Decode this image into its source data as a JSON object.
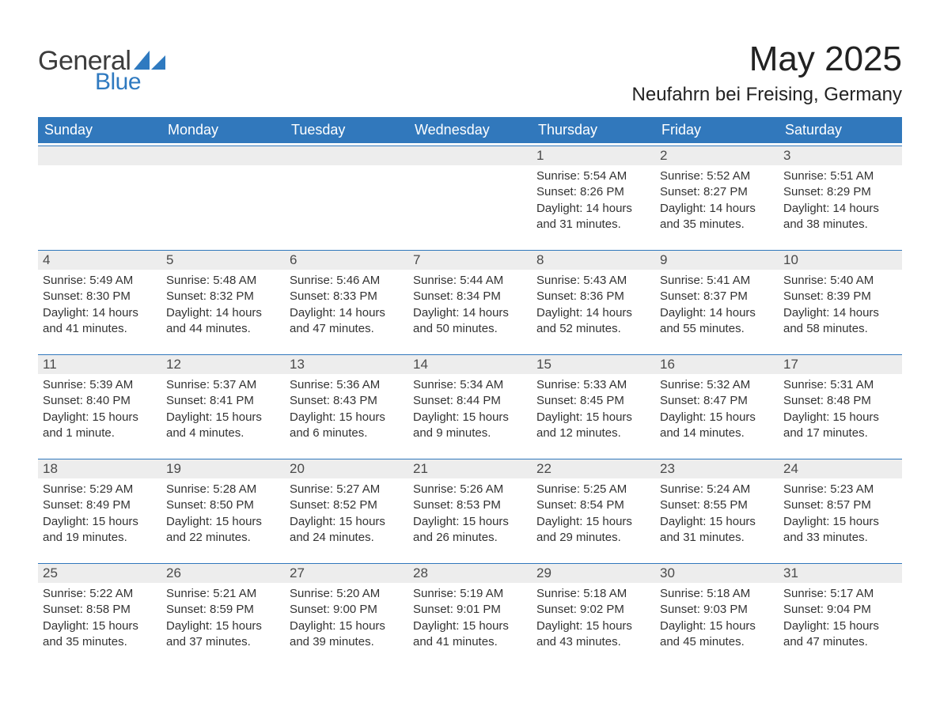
{
  "brand": {
    "text_general": "General",
    "text_blue": "Blue",
    "triangle_color": "#2f7ac0"
  },
  "header": {
    "month_title": "May 2025",
    "location": "Neufahrn bei Freising, Germany"
  },
  "colors": {
    "header_bg": "#3178bc",
    "header_text": "#ffffff",
    "daynum_bg": "#ededed",
    "daynum_border_top": "#3178bc",
    "body_text": "#333333",
    "page_bg": "#ffffff"
  },
  "weekdays": [
    "Sunday",
    "Monday",
    "Tuesday",
    "Wednesday",
    "Thursday",
    "Friday",
    "Saturday"
  ],
  "weeks": [
    [
      {
        "empty": true
      },
      {
        "empty": true
      },
      {
        "empty": true
      },
      {
        "empty": true
      },
      {
        "num": "1",
        "sunrise": "Sunrise: 5:54 AM",
        "sunset": "Sunset: 8:26 PM",
        "daylight": "Daylight: 14 hours and 31 minutes."
      },
      {
        "num": "2",
        "sunrise": "Sunrise: 5:52 AM",
        "sunset": "Sunset: 8:27 PM",
        "daylight": "Daylight: 14 hours and 35 minutes."
      },
      {
        "num": "3",
        "sunrise": "Sunrise: 5:51 AM",
        "sunset": "Sunset: 8:29 PM",
        "daylight": "Daylight: 14 hours and 38 minutes."
      }
    ],
    [
      {
        "num": "4",
        "sunrise": "Sunrise: 5:49 AM",
        "sunset": "Sunset: 8:30 PM",
        "daylight": "Daylight: 14 hours and 41 minutes."
      },
      {
        "num": "5",
        "sunrise": "Sunrise: 5:48 AM",
        "sunset": "Sunset: 8:32 PM",
        "daylight": "Daylight: 14 hours and 44 minutes."
      },
      {
        "num": "6",
        "sunrise": "Sunrise: 5:46 AM",
        "sunset": "Sunset: 8:33 PM",
        "daylight": "Daylight: 14 hours and 47 minutes."
      },
      {
        "num": "7",
        "sunrise": "Sunrise: 5:44 AM",
        "sunset": "Sunset: 8:34 PM",
        "daylight": "Daylight: 14 hours and 50 minutes."
      },
      {
        "num": "8",
        "sunrise": "Sunrise: 5:43 AM",
        "sunset": "Sunset: 8:36 PM",
        "daylight": "Daylight: 14 hours and 52 minutes."
      },
      {
        "num": "9",
        "sunrise": "Sunrise: 5:41 AM",
        "sunset": "Sunset: 8:37 PM",
        "daylight": "Daylight: 14 hours and 55 minutes."
      },
      {
        "num": "10",
        "sunrise": "Sunrise: 5:40 AM",
        "sunset": "Sunset: 8:39 PM",
        "daylight": "Daylight: 14 hours and 58 minutes."
      }
    ],
    [
      {
        "num": "11",
        "sunrise": "Sunrise: 5:39 AM",
        "sunset": "Sunset: 8:40 PM",
        "daylight": "Daylight: 15 hours and 1 minute."
      },
      {
        "num": "12",
        "sunrise": "Sunrise: 5:37 AM",
        "sunset": "Sunset: 8:41 PM",
        "daylight": "Daylight: 15 hours and 4 minutes."
      },
      {
        "num": "13",
        "sunrise": "Sunrise: 5:36 AM",
        "sunset": "Sunset: 8:43 PM",
        "daylight": "Daylight: 15 hours and 6 minutes."
      },
      {
        "num": "14",
        "sunrise": "Sunrise: 5:34 AM",
        "sunset": "Sunset: 8:44 PM",
        "daylight": "Daylight: 15 hours and 9 minutes."
      },
      {
        "num": "15",
        "sunrise": "Sunrise: 5:33 AM",
        "sunset": "Sunset: 8:45 PM",
        "daylight": "Daylight: 15 hours and 12 minutes."
      },
      {
        "num": "16",
        "sunrise": "Sunrise: 5:32 AM",
        "sunset": "Sunset: 8:47 PM",
        "daylight": "Daylight: 15 hours and 14 minutes."
      },
      {
        "num": "17",
        "sunrise": "Sunrise: 5:31 AM",
        "sunset": "Sunset: 8:48 PM",
        "daylight": "Daylight: 15 hours and 17 minutes."
      }
    ],
    [
      {
        "num": "18",
        "sunrise": "Sunrise: 5:29 AM",
        "sunset": "Sunset: 8:49 PM",
        "daylight": "Daylight: 15 hours and 19 minutes."
      },
      {
        "num": "19",
        "sunrise": "Sunrise: 5:28 AM",
        "sunset": "Sunset: 8:50 PM",
        "daylight": "Daylight: 15 hours and 22 minutes."
      },
      {
        "num": "20",
        "sunrise": "Sunrise: 5:27 AM",
        "sunset": "Sunset: 8:52 PM",
        "daylight": "Daylight: 15 hours and 24 minutes."
      },
      {
        "num": "21",
        "sunrise": "Sunrise: 5:26 AM",
        "sunset": "Sunset: 8:53 PM",
        "daylight": "Daylight: 15 hours and 26 minutes."
      },
      {
        "num": "22",
        "sunrise": "Sunrise: 5:25 AM",
        "sunset": "Sunset: 8:54 PM",
        "daylight": "Daylight: 15 hours and 29 minutes."
      },
      {
        "num": "23",
        "sunrise": "Sunrise: 5:24 AM",
        "sunset": "Sunset: 8:55 PM",
        "daylight": "Daylight: 15 hours and 31 minutes."
      },
      {
        "num": "24",
        "sunrise": "Sunrise: 5:23 AM",
        "sunset": "Sunset: 8:57 PM",
        "daylight": "Daylight: 15 hours and 33 minutes."
      }
    ],
    [
      {
        "num": "25",
        "sunrise": "Sunrise: 5:22 AM",
        "sunset": "Sunset: 8:58 PM",
        "daylight": "Daylight: 15 hours and 35 minutes."
      },
      {
        "num": "26",
        "sunrise": "Sunrise: 5:21 AM",
        "sunset": "Sunset: 8:59 PM",
        "daylight": "Daylight: 15 hours and 37 minutes."
      },
      {
        "num": "27",
        "sunrise": "Sunrise: 5:20 AM",
        "sunset": "Sunset: 9:00 PM",
        "daylight": "Daylight: 15 hours and 39 minutes."
      },
      {
        "num": "28",
        "sunrise": "Sunrise: 5:19 AM",
        "sunset": "Sunset: 9:01 PM",
        "daylight": "Daylight: 15 hours and 41 minutes."
      },
      {
        "num": "29",
        "sunrise": "Sunrise: 5:18 AM",
        "sunset": "Sunset: 9:02 PM",
        "daylight": "Daylight: 15 hours and 43 minutes."
      },
      {
        "num": "30",
        "sunrise": "Sunrise: 5:18 AM",
        "sunset": "Sunset: 9:03 PM",
        "daylight": "Daylight: 15 hours and 45 minutes."
      },
      {
        "num": "31",
        "sunrise": "Sunrise: 5:17 AM",
        "sunset": "Sunset: 9:04 PM",
        "daylight": "Daylight: 15 hours and 47 minutes."
      }
    ]
  ]
}
